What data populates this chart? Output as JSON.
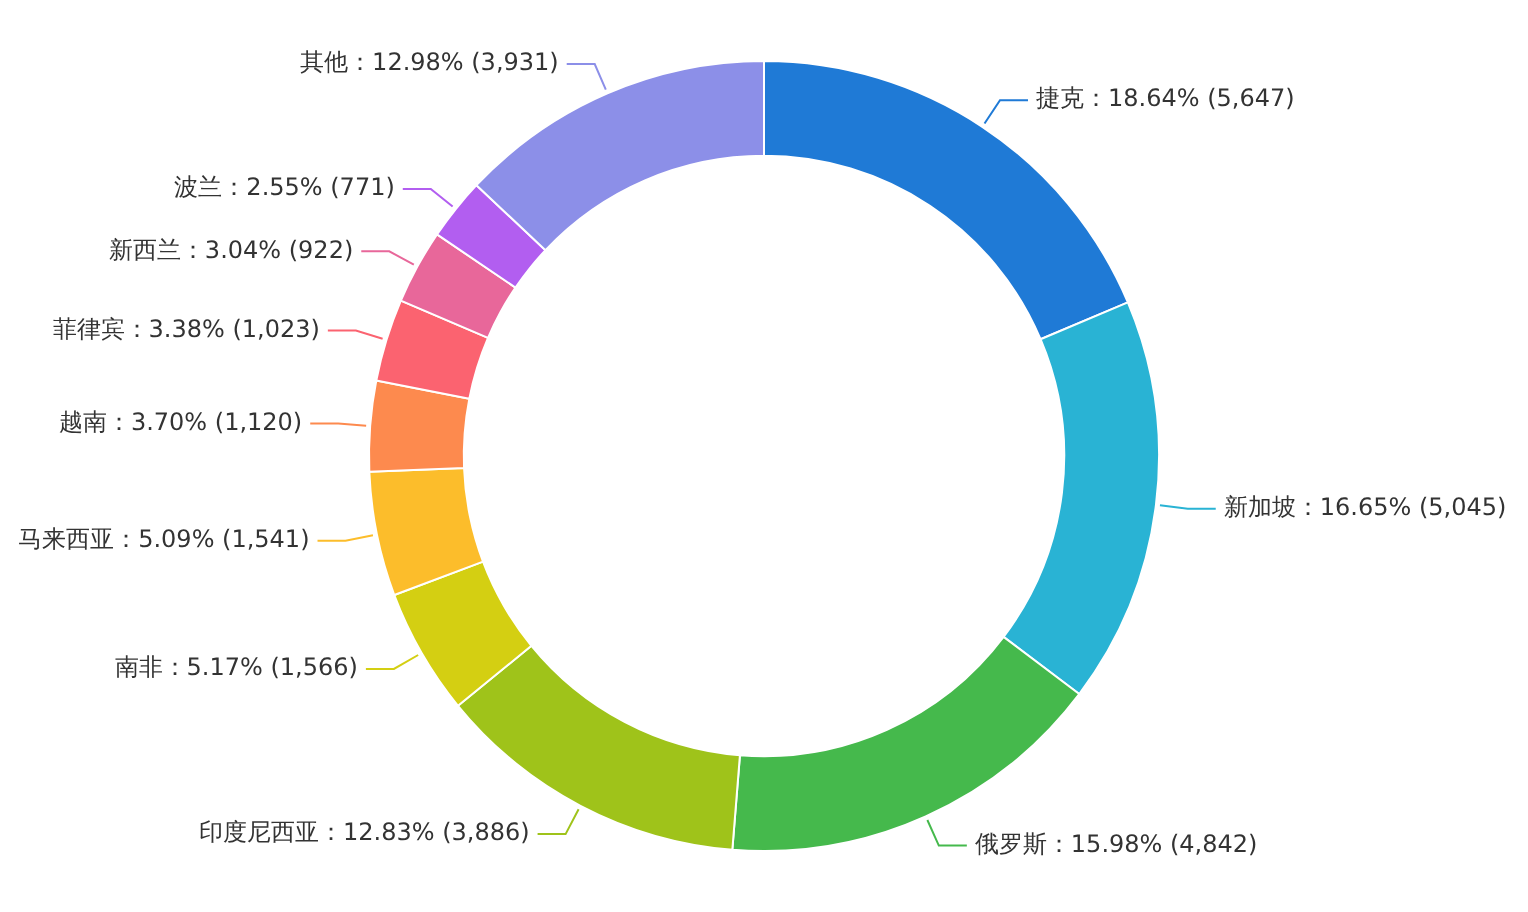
{
  "chart_data": {
    "type": "donut",
    "categories": [
      "捷克",
      "新加坡",
      "俄罗斯",
      "印度尼西亚",
      "南非",
      "马来西亚",
      "越南",
      "菲律宾",
      "新西兰",
      "波兰",
      "其他"
    ],
    "values": [
      5647,
      5045,
      4842,
      3886,
      1566,
      1541,
      1120,
      1023,
      922,
      771,
      3931
    ],
    "value_labels": [
      "：18.64% (5,647)",
      "：16.65% (5,045)",
      "：15.98% (4,842)",
      "：12.83% (3,886)",
      "：5.17% (1,566)",
      "：5.09% (1,541)",
      "：3.70% (1,120)",
      "：3.38% (1,023)",
      "：3.04% (922)",
      "：2.55% (771)",
      "：12.98% (3,931)"
    ],
    "colors": [
      "#1f7ad6",
      "#29b3d4",
      "#45b94c",
      "#9fc31a",
      "#d4cf12",
      "#fcbd2b",
      "#fd8a4e",
      "#fb6370",
      "#e8679a",
      "#b25ef0",
      "#8c8fe8"
    ],
    "legend": false
  }
}
